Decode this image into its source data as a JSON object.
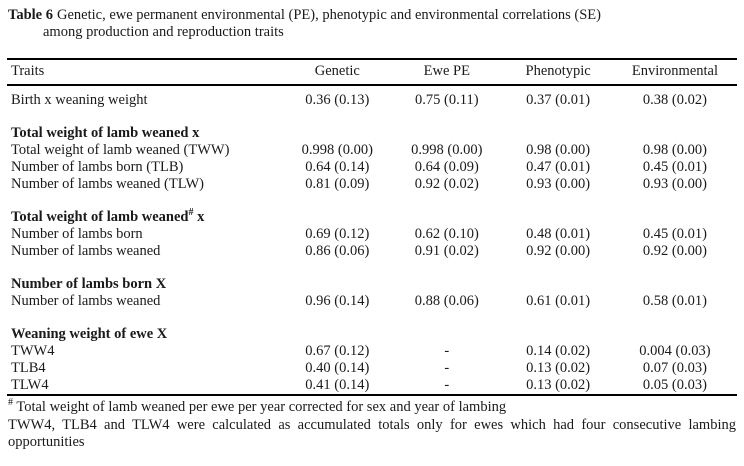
{
  "colors": {
    "background": "#ffffff",
    "text": "#1a1a1a",
    "rule": "#000000"
  },
  "caption": {
    "label": "Table 6",
    "text": "Genetic, ewe permanent environmental (PE), phenotypic and environmental correlations (SE)",
    "line2": "among production and reproduction traits"
  },
  "table": {
    "columns": [
      "Traits",
      "Genetic",
      "Ewe PE",
      "Phenotypic",
      "Environmental"
    ],
    "rows": [
      {
        "type": "data",
        "trait": "Birth x weaning weight",
        "values": [
          "0.36 (0.13)",
          "0.75 (0.11)",
          "0.37 (0.01)",
          "0.38 (0.02)"
        ]
      },
      {
        "type": "spacer"
      },
      {
        "type": "section",
        "trait": "Total weight of lamb weaned x"
      },
      {
        "type": "data",
        "trait": "Total weight of lamb weaned (TWW)",
        "values": [
          "0.998 (0.00)",
          "0.998 (0.00)",
          "0.98 (0.00)",
          "0.98 (0.00)"
        ]
      },
      {
        "type": "data",
        "trait": "Number of lambs born (TLB)",
        "values": [
          "0.64 (0.14)",
          "0.64 (0.09)",
          "0.47 (0.01)",
          "0.45 (0.01)"
        ]
      },
      {
        "type": "data",
        "trait": "Number of lambs weaned (TLW)",
        "values": [
          "0.81 (0.09)",
          "0.92 (0.02)",
          "0.93 (0.00)",
          "0.93 (0.00)"
        ]
      },
      {
        "type": "spacer"
      },
      {
        "type": "section",
        "trait": "Total weight of lamb weaned",
        "trait_sup": "#",
        "trait_after": " x"
      },
      {
        "type": "data",
        "trait": "Number of lambs born",
        "values": [
          "0.69 (0.12)",
          "0.62 (0.10)",
          "0.48 (0.01)",
          "0.45 (0.01)"
        ]
      },
      {
        "type": "data",
        "trait": "Number of lambs weaned",
        "values": [
          "0.86 (0.06)",
          "0.91 (0.02)",
          "0.92 (0.00)",
          "0.92 (0.00)"
        ]
      },
      {
        "type": "spacer"
      },
      {
        "type": "section",
        "trait": "Number of lambs born X"
      },
      {
        "type": "data",
        "trait": "Number of lambs weaned",
        "values": [
          "0.96 (0.14)",
          "0.88 (0.06)",
          "0.61 (0.01)",
          "0.58 (0.01)"
        ]
      },
      {
        "type": "spacer"
      },
      {
        "type": "section",
        "trait": "Weaning weight of ewe X"
      },
      {
        "type": "data",
        "trait": "TWW4",
        "values": [
          "0.67 (0.12)",
          "-",
          "0.14 (0.02)",
          "0.004 (0.03)"
        ]
      },
      {
        "type": "data",
        "trait": "TLB4",
        "values": [
          "0.40 (0.14)",
          "-",
          "0.13 (0.02)",
          "0.07 (0.03)"
        ]
      },
      {
        "type": "data",
        "trait": "TLW4",
        "values": [
          "0.41 (0.14)",
          "-",
          "0.13 (0.02)",
          "0.05 (0.03)"
        ]
      }
    ]
  },
  "footnotes": {
    "note1_sup": "#",
    "note1": " Total weight of lamb weaned per ewe per year corrected for sex and year of lambing",
    "note2": "TWW4, TLB4 and TLW4 were calculated as accumulated totals only for ewes which had four consecutive lambing opportunities"
  }
}
